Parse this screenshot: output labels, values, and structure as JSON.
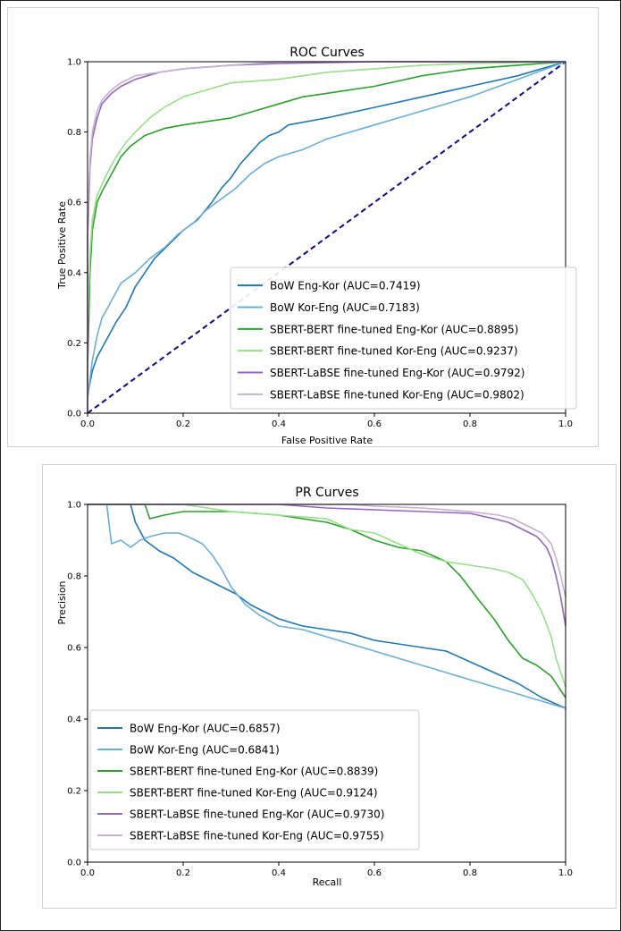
{
  "chart_data": [
    {
      "type": "line",
      "title": "ROC Curves",
      "xlabel": "False Positive Rate",
      "ylabel": "True Positive Rate",
      "xlim": [
        0,
        1
      ],
      "ylim": [
        0,
        1
      ],
      "xticks": [
        "0.0",
        "0.2",
        "0.4",
        "0.6",
        "0.8",
        "1.0"
      ],
      "yticks": [
        "0.0",
        "0.2",
        "0.4",
        "0.6",
        "0.8",
        "1.0"
      ],
      "grid": false,
      "legend_position": "bottom-right",
      "reference_line": {
        "style": "dashed",
        "color": "#0b0b80",
        "from": [
          0,
          0
        ],
        "to": [
          1,
          1
        ]
      },
      "series": [
        {
          "name": "BoW Eng-Kor (AUC=0.7419)",
          "color": "#1f77b4",
          "points": [
            [
              0,
              0
            ],
            [
              0,
              0.05
            ],
            [
              0.01,
              0.12
            ],
            [
              0.02,
              0.16
            ],
            [
              0.04,
              0.21
            ],
            [
              0.06,
              0.26
            ],
            [
              0.08,
              0.3
            ],
            [
              0.1,
              0.36
            ],
            [
              0.12,
              0.4
            ],
            [
              0.14,
              0.44
            ],
            [
              0.17,
              0.48
            ],
            [
              0.2,
              0.52
            ],
            [
              0.23,
              0.55
            ],
            [
              0.26,
              0.6
            ],
            [
              0.28,
              0.64
            ],
            [
              0.3,
              0.67
            ],
            [
              0.32,
              0.71
            ],
            [
              0.34,
              0.74
            ],
            [
              0.36,
              0.77
            ],
            [
              0.38,
              0.79
            ],
            [
              0.4,
              0.8
            ],
            [
              0.42,
              0.82
            ],
            [
              0.5,
              0.84
            ],
            [
              0.6,
              0.87
            ],
            [
              0.7,
              0.9
            ],
            [
              0.8,
              0.93
            ],
            [
              0.9,
              0.96
            ],
            [
              1,
              1
            ]
          ]
        },
        {
          "name": "BoW Kor-Eng (AUC=0.7183)",
          "color": "#6baed6",
          "points": [
            [
              0,
              0
            ],
            [
              0,
              0.04
            ],
            [
              0.01,
              0.15
            ],
            [
              0.02,
              0.22
            ],
            [
              0.03,
              0.27
            ],
            [
              0.05,
              0.32
            ],
            [
              0.07,
              0.37
            ],
            [
              0.1,
              0.4
            ],
            [
              0.13,
              0.44
            ],
            [
              0.16,
              0.47
            ],
            [
              0.19,
              0.51
            ],
            [
              0.22,
              0.54
            ],
            [
              0.25,
              0.58
            ],
            [
              0.28,
              0.61
            ],
            [
              0.31,
              0.64
            ],
            [
              0.34,
              0.68
            ],
            [
              0.37,
              0.71
            ],
            [
              0.4,
              0.73
            ],
            [
              0.45,
              0.75
            ],
            [
              0.5,
              0.78
            ],
            [
              0.6,
              0.82
            ],
            [
              0.7,
              0.86
            ],
            [
              0.8,
              0.9
            ],
            [
              0.9,
              0.95
            ],
            [
              1,
              1
            ]
          ]
        },
        {
          "name": "SBERT-BERT fine-tuned Eng-Kor (AUC=0.8895)",
          "color": "#2ca02c",
          "points": [
            [
              0,
              0
            ],
            [
              0,
              0.12
            ],
            [
              0.005,
              0.4
            ],
            [
              0.01,
              0.52
            ],
            [
              0.02,
              0.6
            ],
            [
              0.03,
              0.63
            ],
            [
              0.05,
              0.68
            ],
            [
              0.07,
              0.73
            ],
            [
              0.09,
              0.76
            ],
            [
              0.12,
              0.79
            ],
            [
              0.16,
              0.81
            ],
            [
              0.2,
              0.82
            ],
            [
              0.25,
              0.83
            ],
            [
              0.3,
              0.84
            ],
            [
              0.35,
              0.86
            ],
            [
              0.4,
              0.88
            ],
            [
              0.45,
              0.9
            ],
            [
              0.5,
              0.91
            ],
            [
              0.6,
              0.93
            ],
            [
              0.7,
              0.96
            ],
            [
              0.8,
              0.98
            ],
            [
              0.9,
              0.99
            ],
            [
              1,
              1
            ]
          ]
        },
        {
          "name": "SBERT-BERT fine-tuned Kor-Eng (AUC=0.9237)",
          "color": "#98df8a",
          "points": [
            [
              0,
              0
            ],
            [
              0,
              0.25
            ],
            [
              0.005,
              0.45
            ],
            [
              0.01,
              0.55
            ],
            [
              0.02,
              0.62
            ],
            [
              0.04,
              0.68
            ],
            [
              0.06,
              0.73
            ],
            [
              0.08,
              0.77
            ],
            [
              0.1,
              0.8
            ],
            [
              0.13,
              0.84
            ],
            [
              0.16,
              0.87
            ],
            [
              0.2,
              0.9
            ],
            [
              0.25,
              0.92
            ],
            [
              0.3,
              0.94
            ],
            [
              0.4,
              0.95
            ],
            [
              0.5,
              0.97
            ],
            [
              0.6,
              0.98
            ],
            [
              0.7,
              0.99
            ],
            [
              0.8,
              0.995
            ],
            [
              1,
              1
            ]
          ]
        },
        {
          "name": "SBERT-LaBSE fine-tuned Eng-Kor (AUC=0.9792)",
          "color": "#9467bd",
          "points": [
            [
              0,
              0
            ],
            [
              0,
              0.5
            ],
            [
              0.005,
              0.7
            ],
            [
              0.01,
              0.78
            ],
            [
              0.02,
              0.84
            ],
            [
              0.03,
              0.88
            ],
            [
              0.05,
              0.91
            ],
            [
              0.07,
              0.93
            ],
            [
              0.1,
              0.95
            ],
            [
              0.15,
              0.97
            ],
            [
              0.2,
              0.98
            ],
            [
              0.3,
              0.99
            ],
            [
              0.4,
              0.995
            ],
            [
              0.6,
              1
            ],
            [
              1,
              1
            ]
          ]
        },
        {
          "name": "SBERT-LaBSE fine-tuned Kor-Eng (AUC=0.9802)",
          "color": "#c5b0d5",
          "points": [
            [
              0,
              0
            ],
            [
              0,
              0.55
            ],
            [
              0.005,
              0.72
            ],
            [
              0.01,
              0.8
            ],
            [
              0.02,
              0.86
            ],
            [
              0.03,
              0.89
            ],
            [
              0.05,
              0.92
            ],
            [
              0.07,
              0.94
            ],
            [
              0.1,
              0.96
            ],
            [
              0.15,
              0.97
            ],
            [
              0.2,
              0.98
            ],
            [
              0.3,
              0.99
            ],
            [
              0.4,
              1
            ],
            [
              1,
              1
            ]
          ]
        }
      ]
    },
    {
      "type": "line",
      "title": "PR Curves",
      "xlabel": "Recall",
      "ylabel": "Precision",
      "xlim": [
        0,
        1
      ],
      "ylim": [
        0,
        1
      ],
      "xticks": [
        "0.0",
        "0.2",
        "0.4",
        "0.6",
        "0.8",
        "1.0"
      ],
      "yticks": [
        "0.0",
        "0.2",
        "0.4",
        "0.6",
        "0.8",
        "1.0"
      ],
      "grid": false,
      "legend_position": "bottom-left",
      "series": [
        {
          "name": "BoW Eng-Kor (AUC=0.6857)",
          "color": "#1f77b4",
          "points": [
            [
              0,
              1
            ],
            [
              0.09,
              1
            ],
            [
              0.1,
              0.95
            ],
            [
              0.12,
              0.9
            ],
            [
              0.15,
              0.87
            ],
            [
              0.18,
              0.85
            ],
            [
              0.2,
              0.83
            ],
            [
              0.22,
              0.81
            ],
            [
              0.25,
              0.79
            ],
            [
              0.28,
              0.77
            ],
            [
              0.31,
              0.75
            ],
            [
              0.34,
              0.72
            ],
            [
              0.37,
              0.7
            ],
            [
              0.4,
              0.68
            ],
            [
              0.45,
              0.66
            ],
            [
              0.5,
              0.65
            ],
            [
              0.55,
              0.64
            ],
            [
              0.6,
              0.62
            ],
            [
              0.65,
              0.61
            ],
            [
              0.7,
              0.6
            ],
            [
              0.75,
              0.59
            ],
            [
              0.8,
              0.56
            ],
            [
              0.85,
              0.53
            ],
            [
              0.9,
              0.5
            ],
            [
              0.95,
              0.46
            ],
            [
              1,
              0.43
            ]
          ]
        },
        {
          "name": "BoW Kor-Eng (AUC=0.6841)",
          "color": "#6baed6",
          "points": [
            [
              0,
              1
            ],
            [
              0.04,
              1
            ],
            [
              0.05,
              0.89
            ],
            [
              0.07,
              0.9
            ],
            [
              0.09,
              0.88
            ],
            [
              0.11,
              0.9
            ],
            [
              0.13,
              0.91
            ],
            [
              0.16,
              0.92
            ],
            [
              0.19,
              0.92
            ],
            [
              0.21,
              0.91
            ],
            [
              0.24,
              0.89
            ],
            [
              0.26,
              0.86
            ],
            [
              0.28,
              0.82
            ],
            [
              0.3,
              0.77
            ],
            [
              0.33,
              0.72
            ],
            [
              0.36,
              0.69
            ],
            [
              0.4,
              0.66
            ],
            [
              0.45,
              0.65
            ],
            [
              0.5,
              0.63
            ],
            [
              0.55,
              0.61
            ],
            [
              0.6,
              0.59
            ],
            [
              0.65,
              0.57
            ],
            [
              0.7,
              0.55
            ],
            [
              0.75,
              0.53
            ],
            [
              0.8,
              0.51
            ],
            [
              0.85,
              0.49
            ],
            [
              0.9,
              0.47
            ],
            [
              0.95,
              0.45
            ],
            [
              1,
              0.43
            ]
          ]
        },
        {
          "name": "SBERT-BERT fine-tuned Eng-Kor (AUC=0.8839)",
          "color": "#2ca02c",
          "points": [
            [
              0,
              1
            ],
            [
              0.12,
              1
            ],
            [
              0.13,
              0.96
            ],
            [
              0.16,
              0.97
            ],
            [
              0.2,
              0.98
            ],
            [
              0.3,
              0.98
            ],
            [
              0.4,
              0.97
            ],
            [
              0.5,
              0.95
            ],
            [
              0.55,
              0.93
            ],
            [
              0.6,
              0.9
            ],
            [
              0.65,
              0.88
            ],
            [
              0.7,
              0.87
            ],
            [
              0.75,
              0.84
            ],
            [
              0.78,
              0.8
            ],
            [
              0.82,
              0.73
            ],
            [
              0.85,
              0.68
            ],
            [
              0.88,
              0.62
            ],
            [
              0.91,
              0.57
            ],
            [
              0.94,
              0.55
            ],
            [
              0.97,
              0.52
            ],
            [
              1,
              0.46
            ]
          ]
        },
        {
          "name": "SBERT-BERT fine-tuned Kor-Eng (AUC=0.9124)",
          "color": "#98df8a",
          "points": [
            [
              0,
              1
            ],
            [
              0.2,
              1
            ],
            [
              0.3,
              0.98
            ],
            [
              0.4,
              0.97
            ],
            [
              0.5,
              0.96
            ],
            [
              0.55,
              0.93
            ],
            [
              0.6,
              0.92
            ],
            [
              0.65,
              0.89
            ],
            [
              0.7,
              0.86
            ],
            [
              0.75,
              0.84
            ],
            [
              0.8,
              0.83
            ],
            [
              0.85,
              0.82
            ],
            [
              0.88,
              0.81
            ],
            [
              0.91,
              0.79
            ],
            [
              0.93,
              0.75
            ],
            [
              0.95,
              0.7
            ],
            [
              0.97,
              0.63
            ],
            [
              0.98,
              0.57
            ],
            [
              1,
              0.49
            ]
          ]
        },
        {
          "name": "SBERT-LaBSE fine-tuned Eng-Kor (AUC=0.9730)",
          "color": "#9467bd",
          "points": [
            [
              0,
              1
            ],
            [
              0.4,
              1
            ],
            [
              0.5,
              0.99
            ],
            [
              0.6,
              0.985
            ],
            [
              0.7,
              0.98
            ],
            [
              0.8,
              0.975
            ],
            [
              0.85,
              0.96
            ],
            [
              0.88,
              0.95
            ],
            [
              0.91,
              0.93
            ],
            [
              0.94,
              0.91
            ],
            [
              0.96,
              0.88
            ],
            [
              0.97,
              0.85
            ],
            [
              0.98,
              0.8
            ],
            [
              0.99,
              0.74
            ],
            [
              1,
              0.66
            ]
          ]
        },
        {
          "name": "SBERT-LaBSE fine-tuned Kor-Eng (AUC=0.9755)",
          "color": "#c5b0d5",
          "points": [
            [
              0,
              1
            ],
            [
              0.55,
              1
            ],
            [
              0.6,
              0.995
            ],
            [
              0.7,
              0.99
            ],
            [
              0.8,
              0.98
            ],
            [
              0.86,
              0.97
            ],
            [
              0.89,
              0.96
            ],
            [
              0.92,
              0.94
            ],
            [
              0.95,
              0.92
            ],
            [
              0.97,
              0.89
            ],
            [
              0.98,
              0.85
            ],
            [
              0.99,
              0.8
            ],
            [
              1,
              0.74
            ]
          ]
        }
      ]
    }
  ]
}
